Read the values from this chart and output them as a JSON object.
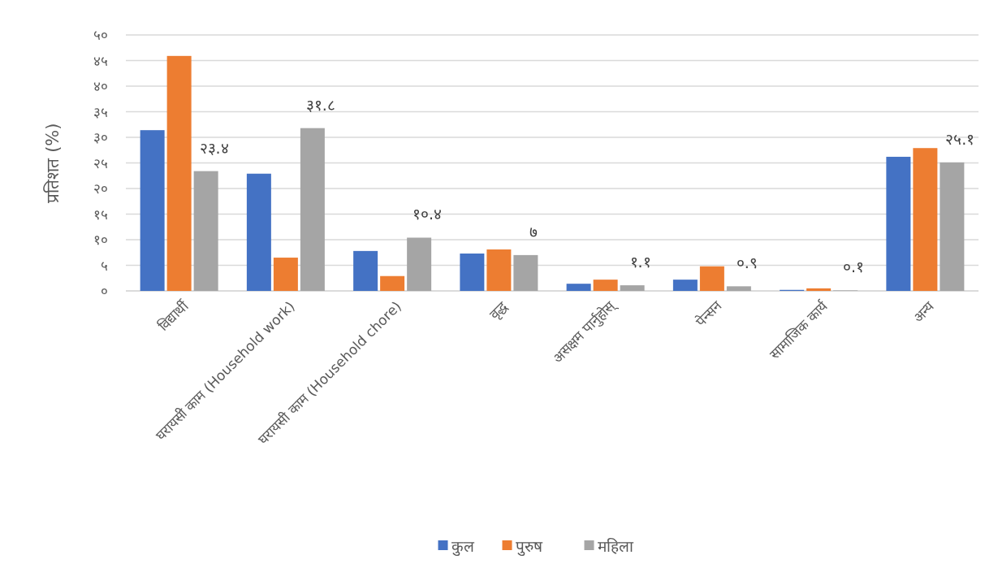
{
  "chart_data": {
    "type": "bar",
    "ylabel": "प्रतिशत (%)",
    "categories": [
      "विद्यार्थी",
      "घरायसी काम  (Household work)",
      "घरायसी काम  (Household chore)",
      "वृद्ध",
      "असक्षम पार्नुहोस्",
      "पेन्सन",
      "सामाजिक कार्य",
      "अन्य"
    ],
    "series": [
      {
        "name": "कुल",
        "color": "#4472c4",
        "values": [
          31.4,
          22.9,
          7.8,
          7.3,
          1.4,
          2.2,
          0.2,
          26.2
        ]
      },
      {
        "name": "पुरुष",
        "color": "#ed7d31",
        "values": [
          45.9,
          6.5,
          2.9,
          8.1,
          2.2,
          4.8,
          0.5,
          27.9
        ]
      },
      {
        "name": "महिला",
        "color": "#a5a5a5",
        "values": [
          23.4,
          31.8,
          10.4,
          7,
          1.1,
          0.9,
          0.1,
          25.1
        ],
        "value_labels": [
          "२३.४",
          "३१.८",
          "१०.४",
          "७",
          "१.१",
          "०.९",
          "०.१",
          "२५.१"
        ]
      }
    ],
    "ylim": [
      0,
      50
    ],
    "yticks": [
      {
        "value": 0,
        "label": "०"
      },
      {
        "value": 5,
        "label": "५"
      },
      {
        "value": 10,
        "label": "१०"
      },
      {
        "value": 15,
        "label": "१५"
      },
      {
        "value": 20,
        "label": "२०"
      },
      {
        "value": 25,
        "label": "२५"
      },
      {
        "value": 30,
        "label": "३०"
      },
      {
        "value": 35,
        "label": "३५"
      },
      {
        "value": 40,
        "label": "४०"
      },
      {
        "value": 45,
        "label": "४५"
      },
      {
        "value": 50,
        "label": "५०"
      }
    ],
    "grid": "y",
    "legend": "bottom"
  }
}
